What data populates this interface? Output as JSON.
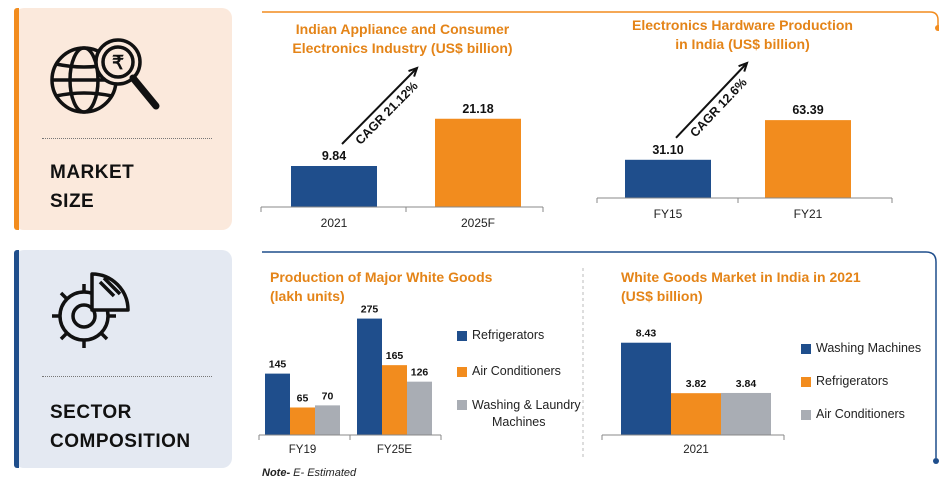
{
  "colors": {
    "navy": "#1f4e8c",
    "orange": "#f28c1e",
    "gray": "#a9adb4",
    "accent": "#e48418"
  },
  "tiles": {
    "market": {
      "label_line1": "MARKET",
      "label_line2": "SIZE",
      "icon": "globe-rupee-magnifier-icon"
    },
    "sector": {
      "label_line1": "SECTOR",
      "label_line2": "COMPOSITION",
      "icon": "gear-pie-chart-icon"
    }
  },
  "note": {
    "prefix": "Note-",
    "text": " E- Estimated"
  },
  "chart_data": [
    {
      "type": "bar",
      "title": "Indian Appliance and Consumer Electronics Industry (US$ billion)",
      "title_line1": "Indian Appliance and Consumer",
      "title_line2": "Electronics Industry (US$ billion)",
      "categories": [
        "2021",
        "2025F"
      ],
      "values": [
        9.84,
        21.18
      ],
      "value_labels": [
        "9.84",
        "21.18"
      ],
      "bar_colors": [
        "#1f4e8c",
        "#f28c1e"
      ],
      "annotation": "CAGR 21.12%",
      "ylim": [
        0,
        24
      ]
    },
    {
      "type": "bar",
      "title": "Electronics Hardware Production in India (US$ billion)",
      "title_line1": "Electronics Hardware Production",
      "title_line2": "in India (US$ billion)",
      "categories": [
        "FY15",
        "FY21"
      ],
      "values": [
        31.1,
        63.39
      ],
      "value_labels": [
        "31.10",
        "63.39"
      ],
      "bar_colors": [
        "#1f4e8c",
        "#f28c1e"
      ],
      "annotation": "CAGR 12.6%",
      "ylim": [
        0,
        70
      ]
    },
    {
      "type": "bar",
      "title": "Production of Major White Goods (lakh units)",
      "title_line1": "Production of Major White Goods",
      "title_line2": "(lakh units)",
      "categories": [
        "FY19",
        "FY25E"
      ],
      "series": [
        {
          "name": "Refrigerators",
          "values": [
            145,
            275
          ],
          "labels": [
            "145",
            "275"
          ],
          "color": "#1f4e8c"
        },
        {
          "name": "Air Conditioners",
          "values": [
            65,
            165
          ],
          "labels": [
            "65",
            "165"
          ],
          "color": "#f28c1e"
        },
        {
          "name": "Washing & Laundry Machines",
          "name_line1": "Washing & Laundry",
          "name_line2": "Machines",
          "values": [
            70,
            126
          ],
          "labels": [
            "70",
            "126"
          ],
          "color": "#a9adb4"
        }
      ],
      "legend": "right",
      "ylim": [
        0,
        300
      ]
    },
    {
      "type": "bar",
      "title": "White Goods Market in India in 2021 (US$ billion)",
      "title_line1": "White Goods Market in India in 2021",
      "title_line2": "(US$ billion)",
      "categories": [
        "2021"
      ],
      "series": [
        {
          "name": "Washing Machines",
          "values": [
            8.43
          ],
          "labels": [
            "8.43"
          ],
          "color": "#1f4e8c"
        },
        {
          "name": "Refrigerators",
          "values": [
            3.82
          ],
          "labels": [
            "3.82"
          ],
          "color": "#f28c1e"
        },
        {
          "name": "Air Conditioners",
          "values": [
            3.84
          ],
          "labels": [
            "3.84"
          ],
          "color": "#a9adb4"
        }
      ],
      "legend": "right",
      "ylim": [
        0,
        9.5
      ]
    }
  ]
}
